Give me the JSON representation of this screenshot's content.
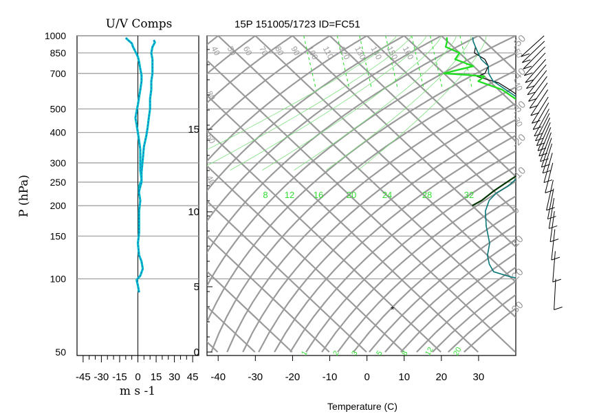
{
  "chart_data": [
    {
      "type": "line",
      "title": "U/V Comps",
      "xlabel": "m s -1",
      "ylabel": "P (hPa)",
      "xlim": [
        -50,
        50
      ],
      "x_ticks": [
        "-45",
        "-30",
        "-15",
        "0",
        "15",
        "30",
        "45"
      ],
      "y_scale": "log",
      "ylim": [
        1000,
        50
      ],
      "y_ticks": [
        "50",
        "100",
        "150",
        "200",
        "250",
        "300",
        "400",
        "500",
        "700",
        "850",
        "1000"
      ],
      "grid": true,
      "series": [
        {
          "color": "#1f6fd1",
          "points": [
            [
              -10,
              980
            ],
            [
              -8,
              960
            ],
            [
              -5,
              930
            ],
            [
              -4,
              900
            ],
            [
              -2,
              860
            ],
            [
              0,
              820
            ],
            [
              1,
              780
            ],
            [
              2,
              730
            ],
            [
              3,
              690
            ],
            [
              3,
              650
            ],
            [
              2,
              600
            ],
            [
              1,
              560
            ],
            [
              0,
              520
            ],
            [
              -1,
              490
            ],
            [
              -2,
              460
            ],
            [
              -1,
              430
            ],
            [
              0,
              400
            ],
            [
              1,
              370
            ],
            [
              2,
              340
            ],
            [
              2,
              310
            ],
            [
              2,
              280
            ],
            [
              3,
              255
            ],
            [
              1,
              240
            ],
            [
              1,
              225
            ],
            [
              2,
              210
            ],
            [
              1,
              190
            ],
            [
              1,
              170
            ],
            [
              1,
              155
            ],
            [
              0,
              140
            ],
            [
              1,
              125
            ],
            [
              3,
              118
            ],
            [
              4,
              110
            ],
            [
              2,
              103
            ],
            [
              -1,
              99
            ],
            [
              0,
              94
            ],
            [
              1,
              88
            ]
          ]
        },
        {
          "color": "#1f6fd1",
          "points": [
            [
              13,
              960
            ],
            [
              14,
              940
            ],
            [
              12,
              900
            ],
            [
              11,
              850
            ],
            [
              12,
              800
            ],
            [
              12,
              750
            ],
            [
              12,
              700
            ],
            [
              11,
              650
            ],
            [
              11,
              600
            ],
            [
              10,
              550
            ],
            [
              10,
              500
            ],
            [
              9,
              460
            ],
            [
              8,
              420
            ],
            [
              7,
              390
            ],
            [
              5,
              350
            ],
            [
              4,
              310
            ],
            [
              3,
              275
            ],
            [
              3,
              250
            ],
            [
              2,
              240
            ],
            [
              1,
              230
            ]
          ]
        }
      ]
    },
    {
      "type": "line",
      "title": "15P 151005/1723 ID=FC51",
      "xlabel": "Temperature (C)",
      "x_ticks": [
        "-40",
        "-30",
        "-20",
        "-10",
        "0",
        "10",
        "20",
        "30"
      ],
      "xlim": [
        -43,
        40
      ],
      "y_scale": "log",
      "ylim": [
        1000,
        50
      ],
      "height_axis_ticks": [
        "0",
        "5",
        "10",
        "15"
      ],
      "isotherm_labels": [
        "40",
        "50",
        "60",
        "70",
        "80",
        "90",
        "100",
        "110",
        "120",
        "130",
        "140",
        "150",
        "160"
      ],
      "isotherm_side_labels": [
        "80",
        "60",
        "40",
        "-30",
        "-40",
        "-50"
      ],
      "dry_adiabat_labels": [
        "-50",
        "-40",
        "-30",
        "-20",
        "-10",
        "0",
        "10",
        "20",
        "30"
      ],
      "moist_adiabat_labels": [
        "8",
        "12",
        "16",
        "20",
        "24",
        "28",
        "32"
      ],
      "mixing_ratio_labels": [
        "1",
        "2",
        "3",
        "5",
        "8",
        "12",
        "20"
      ],
      "grid": true,
      "series": [
        {
          "name": "",
          "color": "#000000",
          "points": [
            [
              28,
              985
            ],
            [
              27,
              950
            ],
            [
              26,
              900
            ],
            [
              24,
              850
            ],
            [
              25,
              800
            ],
            [
              24,
              750
            ],
            [
              21,
              700
            ],
            [
              18,
              680
            ],
            [
              20,
              660
            ],
            [
              22,
              640
            ],
            [
              23,
              600
            ],
            [
              24,
              550
            ],
            [
              23,
              500
            ],
            [
              24,
              450
            ],
            [
              23,
              400
            ],
            [
              20,
              380
            ],
            [
              17,
              350
            ],
            [
              12,
              320
            ],
            [
              6,
              290
            ],
            [
              0,
              260
            ],
            [
              -5,
              240
            ],
            [
              -10,
              225
            ],
            [
              -14,
              210
            ],
            [
              -18,
              190
            ],
            [
              -22,
              165
            ],
            [
              -26,
              140
            ],
            [
              -30,
              125
            ],
            [
              -32,
              115
            ],
            [
              -33,
              107
            ],
            [
              -30,
              102
            ],
            [
              -25,
              98
            ],
            [
              -20,
              92
            ],
            [
              -15,
              85
            ],
            [
              -10,
              80
            ],
            [
              -5,
              75
            ]
          ]
        },
        {
          "name": "",
          "color": "#0b7a78",
          "points": [
            [
              28,
              985
            ],
            [
              27,
              950
            ],
            [
              26,
              900
            ],
            [
              25,
              850
            ],
            [
              24,
              800
            ],
            [
              24,
              750
            ],
            [
              22,
              700
            ],
            [
              21,
              650
            ],
            [
              22,
              600
            ],
            [
              23,
              550
            ],
            [
              23,
              500
            ],
            [
              24,
              450
            ],
            [
              23,
              400
            ],
            [
              20,
              380
            ],
            [
              17,
              350
            ],
            [
              12,
              320
            ],
            [
              6,
              290
            ],
            [
              0,
              260
            ],
            [
              -5,
              240
            ],
            [
              -10,
              225
            ],
            [
              -14,
              210
            ],
            [
              -18,
              190
            ],
            [
              -22,
              165
            ],
            [
              -26,
              140
            ],
            [
              -30,
              125
            ],
            [
              -32,
              115
            ],
            [
              -33,
              107
            ],
            [
              -30,
              102
            ],
            [
              -25,
              98
            ]
          ]
        },
        {
          "name": "",
          "color": "#22dd22",
          "points": [
            [
              21,
              985
            ],
            [
              20,
              950
            ],
            [
              18,
              900
            ],
            [
              20,
              850
            ],
            [
              17,
              800
            ],
            [
              20,
              750
            ],
            [
              14,
              720
            ],
            [
              10,
              700
            ],
            [
              16,
              690
            ],
            [
              20,
              680
            ],
            [
              17,
              650
            ],
            [
              21,
              600
            ],
            [
              22,
              550
            ],
            [
              22,
              500
            ],
            [
              23,
              450
            ],
            [
              23,
              400
            ]
          ]
        },
        {
          "name": "",
          "color": "#003300",
          "points": [
            [
              23,
              400
            ],
            [
              22,
              380
            ],
            [
              19,
              360
            ],
            [
              14,
              330
            ],
            [
              9,
              300
            ],
            [
              3,
              275
            ],
            [
              -4,
              250
            ],
            [
              -10,
              230
            ],
            [
              -16,
              210
            ],
            [
              -20,
              200
            ]
          ]
        }
      ],
      "annotations": [
        "*"
      ]
    }
  ],
  "wind_barbs": {
    "pressures": [
      100,
      130,
      160,
      190,
      215,
      235,
      255,
      300,
      330,
      360,
      380,
      400,
      420,
      440,
      460,
      480,
      500,
      530,
      560,
      600,
      640,
      680,
      720,
      760,
      800,
      850,
      900,
      950,
      1000
    ]
  }
}
